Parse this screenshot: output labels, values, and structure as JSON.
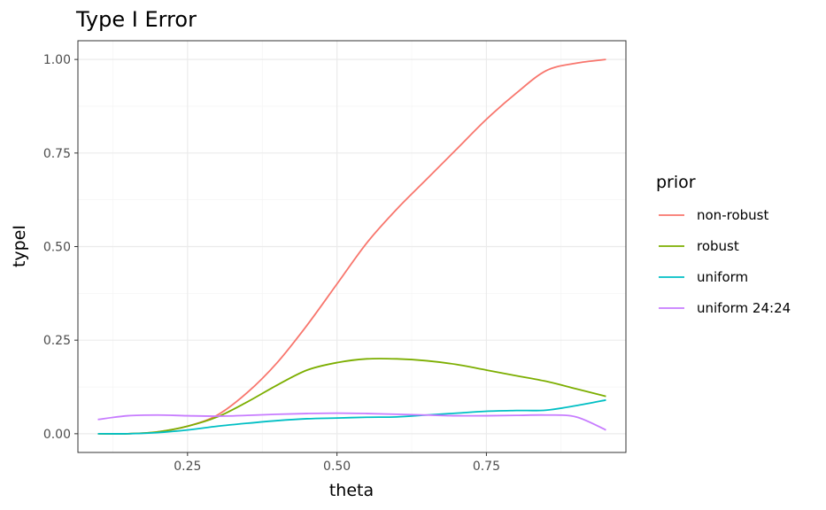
{
  "chart_data": {
    "type": "line",
    "title": "Type I Error",
    "xlabel": "theta",
    "ylabel": "typeI",
    "xlim": [
      0.1,
      0.95
    ],
    "ylim": [
      0,
      1.0
    ],
    "x_ticks": [
      0.25,
      0.5,
      0.75
    ],
    "x_tick_labels": [
      "0.25",
      "0.50",
      "0.75"
    ],
    "y_ticks": [
      0,
      0.25,
      0.5,
      0.75,
      1.0
    ],
    "y_tick_labels": [
      "0.00",
      "0.25",
      "0.50",
      "0.75",
      "1.00"
    ],
    "grid": true,
    "legend": {
      "title": "prior",
      "position": "right"
    },
    "x": [
      0.1,
      0.15,
      0.2,
      0.25,
      0.3,
      0.35,
      0.4,
      0.45,
      0.5,
      0.55,
      0.6,
      0.65,
      0.7,
      0.75,
      0.8,
      0.85,
      0.9,
      0.95
    ],
    "series": [
      {
        "name": "non-robust",
        "color": "#F8766D",
        "values": [
          0.0,
          0.0,
          0.005,
          0.02,
          0.05,
          0.11,
          0.19,
          0.29,
          0.4,
          0.51,
          0.6,
          0.68,
          0.76,
          0.84,
          0.91,
          0.97,
          0.99,
          1.0
        ]
      },
      {
        "name": "robust",
        "color": "#7CAE00",
        "values": [
          0.0,
          0.0,
          0.005,
          0.02,
          0.045,
          0.085,
          0.13,
          0.17,
          0.19,
          0.2,
          0.2,
          0.195,
          0.185,
          0.17,
          0.155,
          0.14,
          0.12,
          0.1
        ]
      },
      {
        "name": "uniform",
        "color": "#00BFC4",
        "values": [
          0.0,
          0.0,
          0.003,
          0.01,
          0.02,
          0.028,
          0.035,
          0.04,
          0.042,
          0.044,
          0.045,
          0.05,
          0.055,
          0.06,
          0.062,
          0.063,
          0.075,
          0.09
        ]
      },
      {
        "name": "uniform 24:24",
        "color": "#C77CFF",
        "values": [
          0.038,
          0.048,
          0.05,
          0.048,
          0.047,
          0.049,
          0.052,
          0.054,
          0.055,
          0.054,
          0.052,
          0.05,
          0.048,
          0.048,
          0.049,
          0.05,
          0.045,
          0.01
        ]
      }
    ]
  }
}
